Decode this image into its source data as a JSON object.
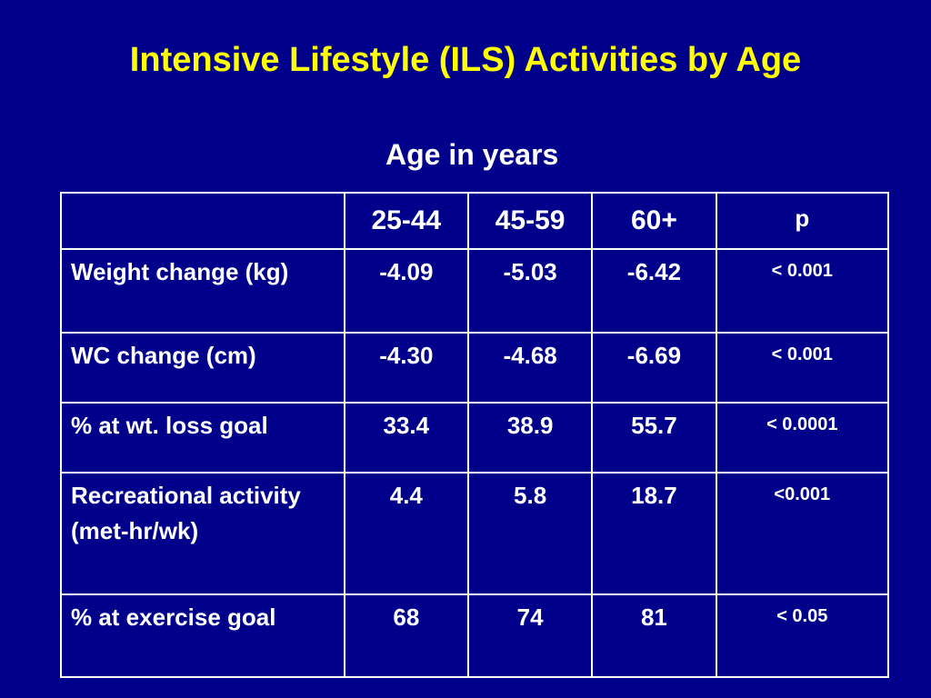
{
  "slide": {
    "title": "Intensive Lifestyle (ILS) Activities by Age",
    "subtitle": "Age in years",
    "colors": {
      "background": "#00008B",
      "title": "#FFFF00",
      "text": "#FFFFFF",
      "grid": "#FFFFFF"
    }
  },
  "table": {
    "headers": [
      "",
      "25-44",
      "45-59",
      "60+",
      "p"
    ],
    "rows": [
      {
        "label": "Weight change (kg)",
        "values": [
          "-4.09",
          "-5.03",
          "-6.42"
        ],
        "p": "< 0.001"
      },
      {
        "label": "WC change (cm)",
        "values": [
          "-4.30",
          "-4.68",
          "-6.69"
        ],
        "p": "< 0.001"
      },
      {
        "label": "% at wt. loss goal",
        "values": [
          "33.4",
          "38.9",
          "55.7"
        ],
        "p": "< 0.0001"
      },
      {
        "label": "Recreational activity (met-hr/wk)",
        "values": [
          "4.4",
          "5.8",
          "18.7"
        ],
        "p": "<0.001"
      },
      {
        "label": "% at exercise goal",
        "values": [
          "68",
          "74",
          "81"
        ],
        "p": "< 0.05"
      }
    ]
  }
}
